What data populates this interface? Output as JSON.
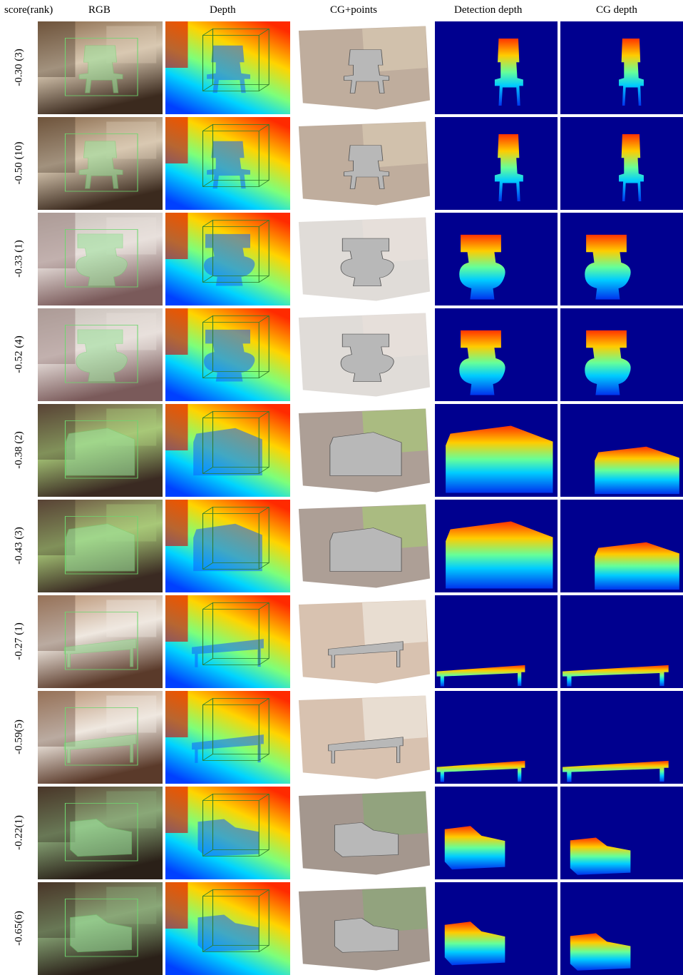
{
  "header": {
    "score": "score(rank)",
    "rgb": "RGB",
    "depth": "Depth",
    "cg_points": "CG+points",
    "detection_depth": "Detection depth",
    "cg_depth": "CG depth"
  },
  "rows": [
    {
      "label": "-0.30 (3)",
      "object": "chair"
    },
    {
      "label": "-0.50 (10)",
      "object": "chair"
    },
    {
      "label": "-0.33 (1)",
      "object": "toilet"
    },
    {
      "label": "-0.52 (4)",
      "object": "toilet"
    },
    {
      "label": "-0.38 (2)",
      "object": "bed"
    },
    {
      "label": "-0.43 (3)",
      "object": "bed"
    },
    {
      "label": "-0.27 (1)",
      "object": "table"
    },
    {
      "label": "-0.59(5)",
      "object": "table"
    },
    {
      "label": "-0.22(1)",
      "object": "sofa"
    },
    {
      "label": "-0.65(6)",
      "object": "sofa"
    }
  ],
  "colors": {
    "jet_background": "#00008f",
    "box_outline": "#6fd66f"
  }
}
